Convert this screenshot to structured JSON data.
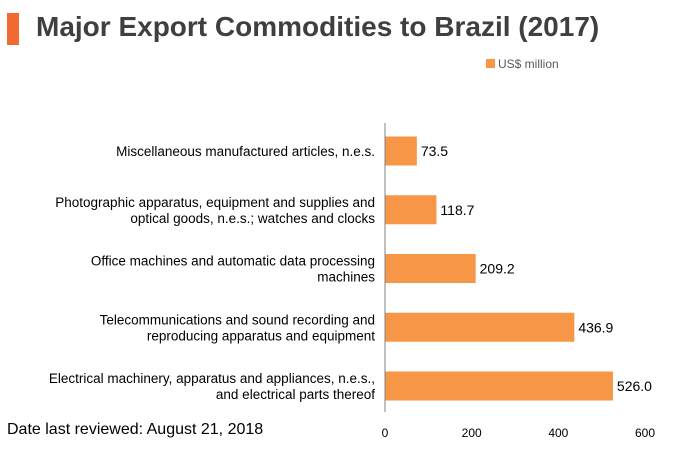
{
  "header": {
    "title": "Major Export Commodities to Brazil (2017)"
  },
  "footer": {
    "note": "Date last reviewed: August 21, 2018"
  },
  "colors": {
    "accent": "#f26a32",
    "bar": "#f79646",
    "axis": "#808080",
    "title_text": "#3f3f3f"
  },
  "chart_data": {
    "type": "bar",
    "orientation": "horizontal",
    "title": "Major Export Commodities to Brazil (2017)",
    "categories": [
      [
        "Miscellaneous manufactured articles, n.e.s."
      ],
      [
        "Photographic apparatus, equipment and supplies and",
        "optical goods, n.e.s.; watches and clocks"
      ],
      [
        "Office machines and automatic data processing",
        "machines"
      ],
      [
        "Telecommunications and sound recording and",
        "reproducing apparatus and equipment"
      ],
      [
        "Electrical machinery, apparatus and appliances, n.e.s.,",
        "and electrical parts thereof"
      ]
    ],
    "series": [
      {
        "name": "US$ million",
        "values": [
          73.5,
          118.7,
          209.2,
          436.9,
          526.0
        ],
        "labels": [
          "73.5",
          "118.7",
          "209.2",
          "436.9",
          "526.0"
        ]
      }
    ],
    "xlim": [
      0,
      600
    ],
    "xticks": [
      0,
      200,
      400,
      600
    ],
    "grid": false,
    "legend_position": "top-right"
  }
}
